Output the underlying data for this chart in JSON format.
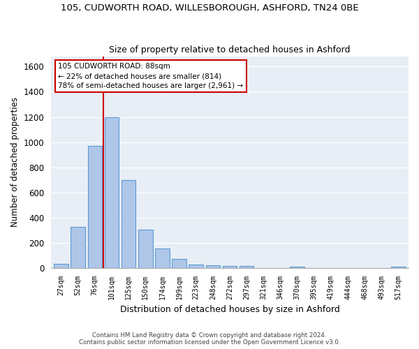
{
  "title_line1": "105, CUDWORTH ROAD, WILLESBOROUGH, ASHFORD, TN24 0BE",
  "title_line2": "Size of property relative to detached houses in Ashford",
  "xlabel": "Distribution of detached houses by size in Ashford",
  "ylabel": "Number of detached properties",
  "categories": [
    "27sqm",
    "52sqm",
    "76sqm",
    "101sqm",
    "125sqm",
    "150sqm",
    "174sqm",
    "199sqm",
    "223sqm",
    "248sqm",
    "272sqm",
    "297sqm",
    "321sqm",
    "346sqm",
    "370sqm",
    "395sqm",
    "419sqm",
    "444sqm",
    "468sqm",
    "493sqm",
    "517sqm"
  ],
  "values": [
    30,
    325,
    970,
    1200,
    700,
    305,
    155,
    70,
    28,
    20,
    15,
    15,
    0,
    0,
    12,
    0,
    0,
    0,
    0,
    0,
    12
  ],
  "bar_color": "#aec6e8",
  "bar_edge_color": "#5b9bd5",
  "marker_label_line1": "105 CUDWORTH ROAD: 88sqm",
  "marker_label_line2": "← 22% of detached houses are smaller (814)",
  "marker_label_line3": "78% of semi-detached houses are larger (2,961) →",
  "marker_color": "#cc0000",
  "annotation_box_color": "#cc0000",
  "ylim": [
    0,
    1680
  ],
  "yticks": [
    0,
    200,
    400,
    600,
    800,
    1000,
    1200,
    1400,
    1600
  ],
  "footer_line1": "Contains HM Land Registry data © Crown copyright and database right 2024.",
  "footer_line2": "Contains public sector information licensed under the Open Government Licence v3.0.",
  "bg_color": "#e8eef5",
  "bar_width": 0.85
}
